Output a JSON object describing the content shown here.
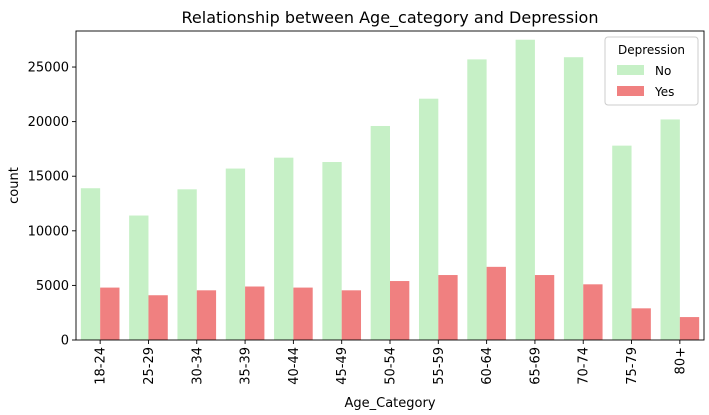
{
  "chart_data": {
    "type": "bar",
    "title": "Relationship between Age_category and Depression",
    "xlabel": "Age_Category",
    "ylabel": "count",
    "categories": [
      "18-24",
      "25-29",
      "30-34",
      "35-39",
      "40-44",
      "45-49",
      "50-54",
      "55-59",
      "60-64",
      "65-69",
      "70-74",
      "75-79",
      "80+"
    ],
    "series": [
      {
        "name": "No",
        "color": "#c6f0c6",
        "values": [
          13900,
          11400,
          13800,
          15700,
          16700,
          16300,
          19600,
          22100,
          25700,
          27500,
          25900,
          17800,
          20200
        ]
      },
      {
        "name": "Yes",
        "color": "#f08080",
        "values": [
          4800,
          4100,
          4550,
          4900,
          4800,
          4550,
          5400,
          5950,
          6700,
          5950,
          5100,
          2900,
          2100
        ]
      }
    ],
    "ylim": [
      0,
      28300
    ],
    "yticks": [
      0,
      5000,
      10000,
      15000,
      20000,
      25000
    ],
    "legend": {
      "title": "Depression",
      "placement": "top-right"
    },
    "grid": false
  }
}
